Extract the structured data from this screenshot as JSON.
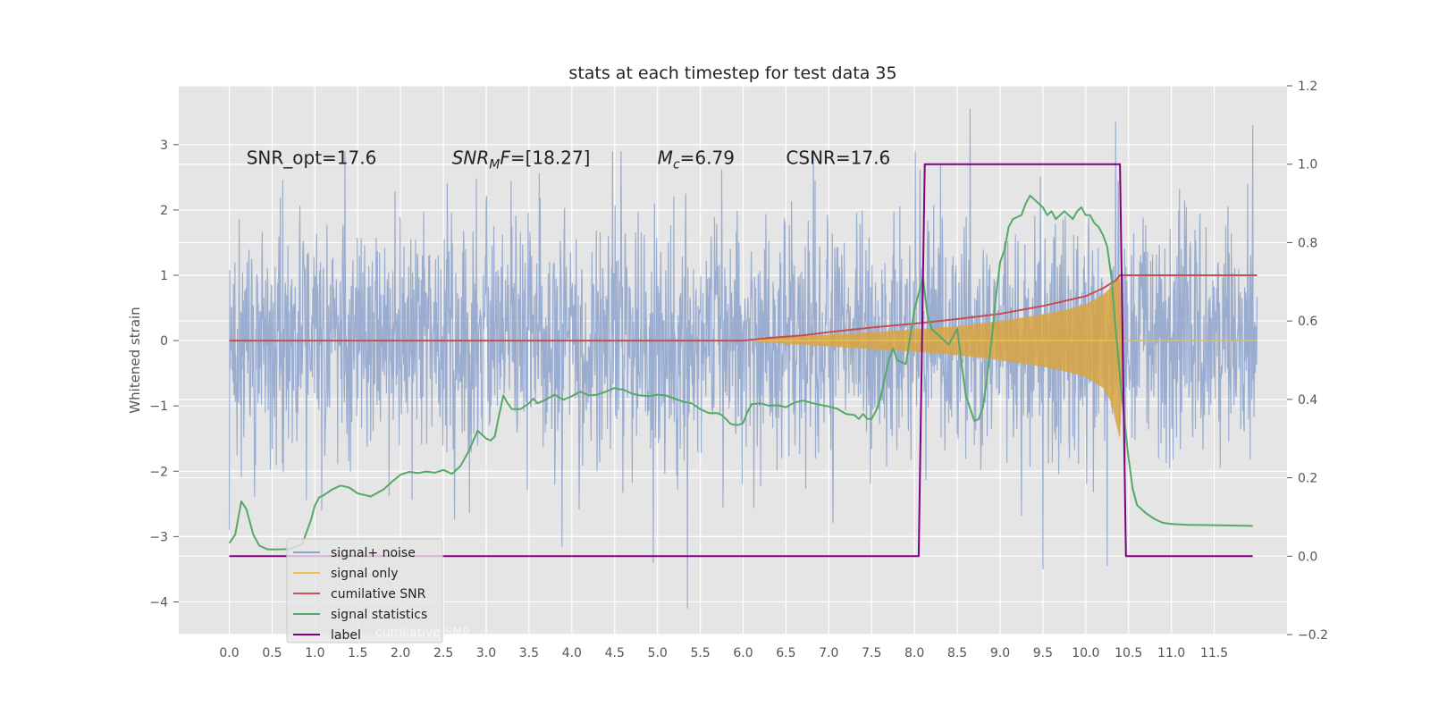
{
  "chart_data": {
    "type": "line",
    "title": "stats at each timestep for test data 35",
    "xlabel": "",
    "ylabel": "Whitened strain",
    "xlim": [
      -0.59,
      12.35
    ],
    "ylim": [
      -4.5,
      3.9
    ],
    "y2lim": [
      -0.2,
      1.2
    ],
    "xticks": [
      0.0,
      0.5,
      1.0,
      1.5,
      2.0,
      2.5,
      3.0,
      3.5,
      4.0,
      4.5,
      5.0,
      5.5,
      6.0,
      6.5,
      7.0,
      7.5,
      8.0,
      8.5,
      9.0,
      9.5,
      10.0,
      10.5,
      11.0,
      11.5
    ],
    "xtick_labels": [
      "0.0",
      "0.5",
      "1.0",
      "1.5",
      "2.0",
      "2.5",
      "3.0",
      "3.5",
      "4.0",
      "4.5",
      "5.0",
      "5.5",
      "6.0",
      "6.5",
      "7.0",
      "7.5",
      "8.0",
      "8.5",
      "9.0",
      "9.5",
      "10.0",
      "10.5",
      "11.0",
      "11.5"
    ],
    "yticks": [
      -4,
      -3,
      -2,
      -1,
      0,
      1,
      2,
      3
    ],
    "ytick_labels": [
      "−4",
      "−3",
      "−2",
      "−1",
      "0",
      "1",
      "2",
      "3"
    ],
    "y2ticks": [
      -0.2,
      0.0,
      0.2,
      0.4,
      0.6,
      0.8,
      1.0,
      1.2
    ],
    "y2tick_labels": [
      "−0.2",
      "0.0",
      "0.2",
      "0.4",
      "0.6",
      "0.8",
      "1.0",
      "1.2"
    ],
    "grid": true,
    "legend_position": "lower-left",
    "annotations": {
      "snr_opt": "SNR_opt=17.6",
      "snr_mf_main": "SNR",
      "snr_mf_sub": "M",
      "snr_mf_rest": "F",
      "snr_mf_value": "=[18.27]",
      "mc_main": "M",
      "mc_sub": "c",
      "mc_value": "=6.79",
      "csnr": "CSNR=17.6"
    },
    "annotation_x": [
      0.2,
      2.6,
      5.0,
      6.5
    ],
    "annotation_y": 2.8,
    "series": [
      {
        "name": "signal+ noise",
        "color": "#8da3cc",
        "axis": "left",
        "x_range": [
          0.0,
          12.0
        ],
        "amplitude_std": 0.9,
        "extrema": [
          {
            "x": 5.35,
            "y": -4.1
          },
          {
            "x": 8.65,
            "y": 3.55
          },
          {
            "x": 10.35,
            "y": 3.35
          },
          {
            "x": 11.95,
            "y": 3.3
          },
          {
            "x": 1.35,
            "y": 2.9
          },
          {
            "x": 9.5,
            "y": -3.5
          },
          {
            "x": 10.25,
            "y": -3.45
          },
          {
            "x": 4.95,
            "y": -3.4
          }
        ]
      },
      {
        "name": "signal only",
        "color": "#e8c14a",
        "axis": "left",
        "x": [
          0.0,
          6.0,
          6.5,
          7.0,
          7.5,
          8.0,
          8.5,
          9.0,
          9.5,
          9.8,
          10.0,
          10.2,
          10.3,
          10.35,
          10.4,
          10.45,
          12.0
        ],
        "upper": [
          0.0,
          0.0,
          0.05,
          0.09,
          0.13,
          0.17,
          0.22,
          0.3,
          0.4,
          0.48,
          0.56,
          0.7,
          0.82,
          0.92,
          0.95,
          0.0,
          0.0
        ],
        "lower": [
          0.0,
          0.0,
          -0.05,
          -0.09,
          -0.13,
          -0.17,
          -0.22,
          -0.3,
          -0.4,
          -0.48,
          -0.56,
          -0.72,
          -0.95,
          -1.25,
          -1.5,
          0.0,
          0.0
        ]
      },
      {
        "name": "cumilative SNR",
        "color": "#c44e52",
        "axis": "left",
        "x": [
          0.0,
          6.0,
          6.3,
          6.7,
          7.0,
          7.5,
          8.0,
          8.5,
          9.0,
          9.5,
          10.0,
          10.2,
          10.35,
          10.4,
          12.0
        ],
        "values": [
          0.0,
          0.0,
          0.04,
          0.08,
          0.13,
          0.2,
          0.26,
          0.33,
          0.41,
          0.53,
          0.68,
          0.8,
          0.92,
          1.0,
          1.0
        ]
      },
      {
        "name": "signal statistics",
        "color": "#55a868",
        "axis": "right",
        "x": [
          0.0,
          0.07,
          0.14,
          0.2,
          0.28,
          0.35,
          0.45,
          0.55,
          0.7,
          0.85,
          0.95,
          1.0,
          1.05,
          1.1,
          1.2,
          1.3,
          1.4,
          1.5,
          1.6,
          1.65,
          1.7,
          1.8,
          1.9,
          2.0,
          2.1,
          2.2,
          2.3,
          2.4,
          2.5,
          2.6,
          2.7,
          2.8,
          2.9,
          3.0,
          3.05,
          3.1,
          3.15,
          3.2,
          3.25,
          3.3,
          3.35,
          3.4,
          3.5,
          3.55,
          3.6,
          3.7,
          3.8,
          3.9,
          4.0,
          4.1,
          4.2,
          4.3,
          4.4,
          4.45,
          4.5,
          4.55,
          4.6,
          4.7,
          4.8,
          4.9,
          5.0,
          5.1,
          5.2,
          5.3,
          5.4,
          5.5,
          5.6,
          5.7,
          5.75,
          5.8,
          5.85,
          5.9,
          5.95,
          6.0,
          6.05,
          6.1,
          6.2,
          6.3,
          6.4,
          6.5,
          6.6,
          6.7,
          6.8,
          6.9,
          7.0,
          7.1,
          7.2,
          7.3,
          7.35,
          7.4,
          7.45,
          7.5,
          7.55,
          7.6,
          7.65,
          7.7,
          7.75,
          7.8,
          7.9,
          8.0,
          8.05,
          8.1,
          8.15,
          8.2,
          8.25,
          8.3,
          8.35,
          8.4,
          8.45,
          8.5,
          8.55,
          8.6,
          8.7,
          8.75,
          8.8,
          8.85,
          8.9,
          8.95,
          9.0,
          9.05,
          9.1,
          9.15,
          9.2,
          9.25,
          9.3,
          9.35,
          9.4,
          9.45,
          9.5,
          9.55,
          9.6,
          9.65,
          9.7,
          9.75,
          9.8,
          9.85,
          9.9,
          9.95,
          10.0,
          10.05,
          10.1,
          10.15,
          10.2,
          10.25,
          10.3,
          10.35,
          10.4,
          10.45,
          10.5,
          10.55,
          10.6,
          10.7,
          10.8,
          10.9,
          11.0,
          11.2,
          11.5,
          11.95
        ],
        "values": [
          0.033,
          0.055,
          0.14,
          0.12,
          0.055,
          0.027,
          0.017,
          0.017,
          0.018,
          0.03,
          0.09,
          0.13,
          0.15,
          0.155,
          0.17,
          0.18,
          0.175,
          0.16,
          0.155,
          0.152,
          0.158,
          0.17,
          0.19,
          0.208,
          0.215,
          0.212,
          0.216,
          0.213,
          0.22,
          0.21,
          0.23,
          0.27,
          0.32,
          0.3,
          0.295,
          0.305,
          0.36,
          0.41,
          0.39,
          0.375,
          0.375,
          0.375,
          0.39,
          0.402,
          0.39,
          0.4,
          0.412,
          0.399,
          0.408,
          0.42,
          0.41,
          0.412,
          0.42,
          0.425,
          0.429,
          0.426,
          0.425,
          0.415,
          0.41,
          0.408,
          0.412,
          0.41,
          0.402,
          0.394,
          0.39,
          0.375,
          0.365,
          0.365,
          0.36,
          0.35,
          0.338,
          0.335,
          0.335,
          0.34,
          0.368,
          0.388,
          0.39,
          0.384,
          0.385,
          0.38,
          0.392,
          0.397,
          0.391,
          0.386,
          0.382,
          0.376,
          0.363,
          0.36,
          0.35,
          0.363,
          0.35,
          0.35,
          0.37,
          0.4,
          0.45,
          0.5,
          0.53,
          0.5,
          0.49,
          0.63,
          0.67,
          0.71,
          0.62,
          0.58,
          0.57,
          0.56,
          0.55,
          0.54,
          0.56,
          0.58,
          0.49,
          0.41,
          0.345,
          0.35,
          0.38,
          0.46,
          0.55,
          0.66,
          0.75,
          0.78,
          0.84,
          0.86,
          0.865,
          0.87,
          0.9,
          0.92,
          0.91,
          0.9,
          0.89,
          0.87,
          0.88,
          0.86,
          0.87,
          0.88,
          0.87,
          0.86,
          0.88,
          0.89,
          0.87,
          0.87,
          0.85,
          0.84,
          0.82,
          0.79,
          0.71,
          0.58,
          0.46,
          0.35,
          0.25,
          0.17,
          0.13,
          0.11,
          0.095,
          0.085,
          0.082,
          0.08,
          0.079,
          0.077
        ]
      },
      {
        "name": "label",
        "color": "#800080",
        "axis": "right",
        "x": [
          0.0,
          8.05,
          8.12,
          10.4,
          10.47,
          11.95
        ],
        "values": [
          0.0,
          0.0,
          1.0,
          1.0,
          0.0,
          0.0
        ]
      }
    ],
    "legend_ghost_text": "cumilative SNR"
  }
}
